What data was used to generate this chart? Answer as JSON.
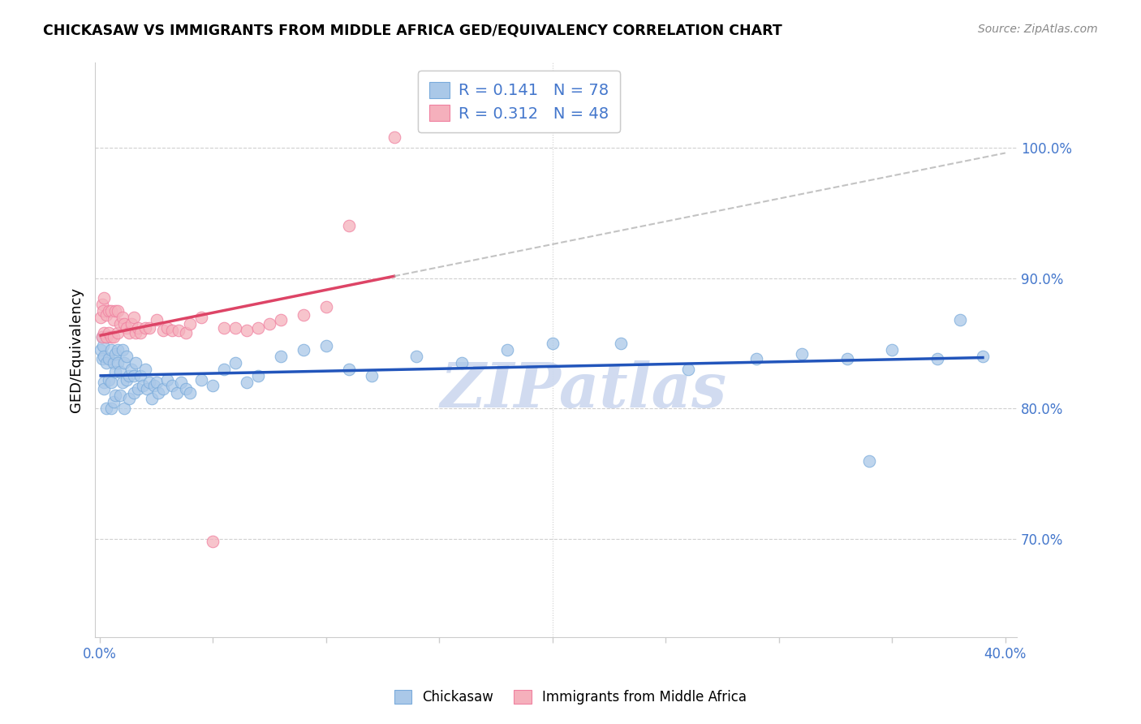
{
  "title": "CHICKASAW VS IMMIGRANTS FROM MIDDLE AFRICA GED/EQUIVALENCY CORRELATION CHART",
  "source": "Source: ZipAtlas.com",
  "ylabel": "GED/Equivalency",
  "yticks_right": [
    0.7,
    0.8,
    0.9,
    1.0
  ],
  "ytick_labels_right": [
    "70.0%",
    "80.0%",
    "90.0%",
    "100.0%"
  ],
  "xlim": [
    -0.002,
    0.405
  ],
  "ylim": [
    0.625,
    1.065
  ],
  "blue_R": 0.141,
  "blue_N": 78,
  "pink_R": 0.312,
  "pink_N": 48,
  "blue_scatter_color": "#aac8e8",
  "pink_scatter_color": "#f5b0bc",
  "blue_edge_color": "#7aabdb",
  "pink_edge_color": "#f080a0",
  "blue_line_color": "#2255bb",
  "pink_line_color": "#dd4466",
  "legend_text_color": "#4477cc",
  "watermark": "ZIPatlas",
  "watermark_color": "#ccd8ef",
  "blue_x": [
    0.0005,
    0.001,
    0.001,
    0.0015,
    0.002,
    0.002,
    0.002,
    0.003,
    0.003,
    0.003,
    0.004,
    0.004,
    0.005,
    0.005,
    0.005,
    0.006,
    0.006,
    0.007,
    0.007,
    0.007,
    0.008,
    0.008,
    0.009,
    0.009,
    0.01,
    0.01,
    0.011,
    0.011,
    0.012,
    0.012,
    0.013,
    0.013,
    0.014,
    0.015,
    0.015,
    0.016,
    0.017,
    0.018,
    0.019,
    0.02,
    0.021,
    0.022,
    0.023,
    0.024,
    0.025,
    0.026,
    0.028,
    0.03,
    0.032,
    0.034,
    0.036,
    0.038,
    0.04,
    0.045,
    0.05,
    0.055,
    0.06,
    0.065,
    0.07,
    0.08,
    0.09,
    0.1,
    0.11,
    0.12,
    0.14,
    0.16,
    0.18,
    0.2,
    0.23,
    0.26,
    0.29,
    0.31,
    0.33,
    0.35,
    0.37,
    0.39,
    0.34,
    0.38
  ],
  "blue_y": [
    0.845,
    0.855,
    0.838,
    0.848,
    0.84,
    0.82,
    0.815,
    0.855,
    0.835,
    0.8,
    0.838,
    0.822,
    0.845,
    0.82,
    0.8,
    0.835,
    0.805,
    0.842,
    0.828,
    0.81,
    0.845,
    0.835,
    0.828,
    0.81,
    0.845,
    0.82,
    0.835,
    0.8,
    0.84,
    0.822,
    0.825,
    0.808,
    0.83,
    0.825,
    0.812,
    0.835,
    0.815,
    0.825,
    0.818,
    0.83,
    0.815,
    0.82,
    0.808,
    0.818,
    0.82,
    0.812,
    0.815,
    0.822,
    0.818,
    0.812,
    0.82,
    0.815,
    0.812,
    0.822,
    0.818,
    0.83,
    0.835,
    0.82,
    0.825,
    0.84,
    0.845,
    0.848,
    0.83,
    0.825,
    0.84,
    0.835,
    0.845,
    0.85,
    0.85,
    0.83,
    0.838,
    0.842,
    0.838,
    0.845,
    0.838,
    0.84,
    0.76,
    0.868
  ],
  "pink_x": [
    0.0005,
    0.001,
    0.001,
    0.0015,
    0.002,
    0.002,
    0.003,
    0.003,
    0.004,
    0.004,
    0.005,
    0.005,
    0.006,
    0.006,
    0.007,
    0.008,
    0.008,
    0.009,
    0.01,
    0.011,
    0.012,
    0.013,
    0.014,
    0.015,
    0.016,
    0.017,
    0.018,
    0.02,
    0.022,
    0.025,
    0.028,
    0.03,
    0.032,
    0.035,
    0.038,
    0.04,
    0.045,
    0.05,
    0.055,
    0.06,
    0.065,
    0.07,
    0.075,
    0.08,
    0.09,
    0.1,
    0.11,
    0.13
  ],
  "pink_y": [
    0.87,
    0.88,
    0.855,
    0.875,
    0.885,
    0.858,
    0.872,
    0.855,
    0.875,
    0.858,
    0.875,
    0.855,
    0.868,
    0.855,
    0.875,
    0.875,
    0.858,
    0.865,
    0.87,
    0.865,
    0.862,
    0.858,
    0.865,
    0.87,
    0.858,
    0.862,
    0.858,
    0.862,
    0.862,
    0.868,
    0.86,
    0.862,
    0.86,
    0.86,
    0.858,
    0.865,
    0.87,
    0.698,
    0.862,
    0.862,
    0.86,
    0.862,
    0.865,
    0.868,
    0.872,
    0.878,
    0.94,
    1.008
  ]
}
